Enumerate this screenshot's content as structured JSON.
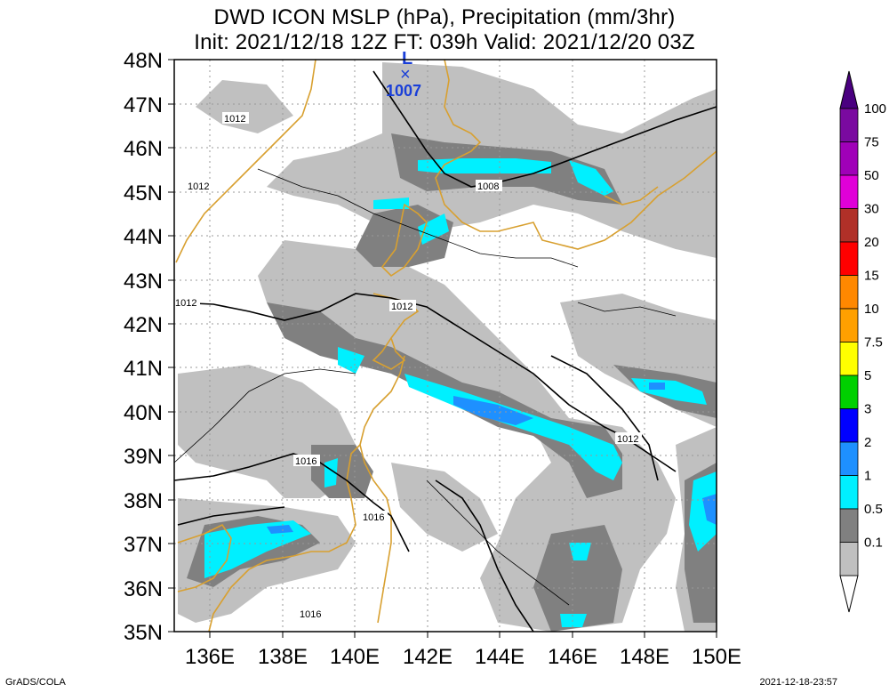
{
  "title": {
    "line1": "DWD ICON MSLP (hPa), Precipitation (mm/3hr)",
    "line2": "Init: 2021/12/18 12Z  FT: 039h  Valid: 2021/12/20 03Z"
  },
  "axes": {
    "lat_labels": [
      "48N",
      "47N",
      "46N",
      "45N",
      "44N",
      "43N",
      "42N",
      "41N",
      "40N",
      "39N",
      "38N",
      "37N",
      "36N",
      "35N"
    ],
    "lon_labels": [
      "136E",
      "138E",
      "140E",
      "142E",
      "144E",
      "146E",
      "148E",
      "150E"
    ]
  },
  "low_center": {
    "symbol": "L",
    "marker": "×",
    "pressure": "1007",
    "color": "#1a3fd8"
  },
  "contour_labels": [
    "1012",
    "1012",
    "1008",
    "1012",
    "1012",
    "1012",
    "1016",
    "1016",
    "1016"
  ],
  "colorbar": {
    "levels": [
      "100",
      "75",
      "50",
      "30",
      "20",
      "15",
      "10",
      "7.5",
      "5",
      "3",
      "2",
      "1",
      "0.5",
      "0.1"
    ],
    "colors": [
      "#7a0aa0",
      "#a000b8",
      "#e000d8",
      "#b03028",
      "#ff0000",
      "#ff8800",
      "#ffa000",
      "#ffff00",
      "#00d000",
      "#0000ff",
      "#1e90ff",
      "#00f0ff",
      "#808080",
      "#c0c0c0"
    ]
  },
  "footer": {
    "credit": "GrADS/COLA",
    "timestamp": "2021-12-18-23:57"
  }
}
